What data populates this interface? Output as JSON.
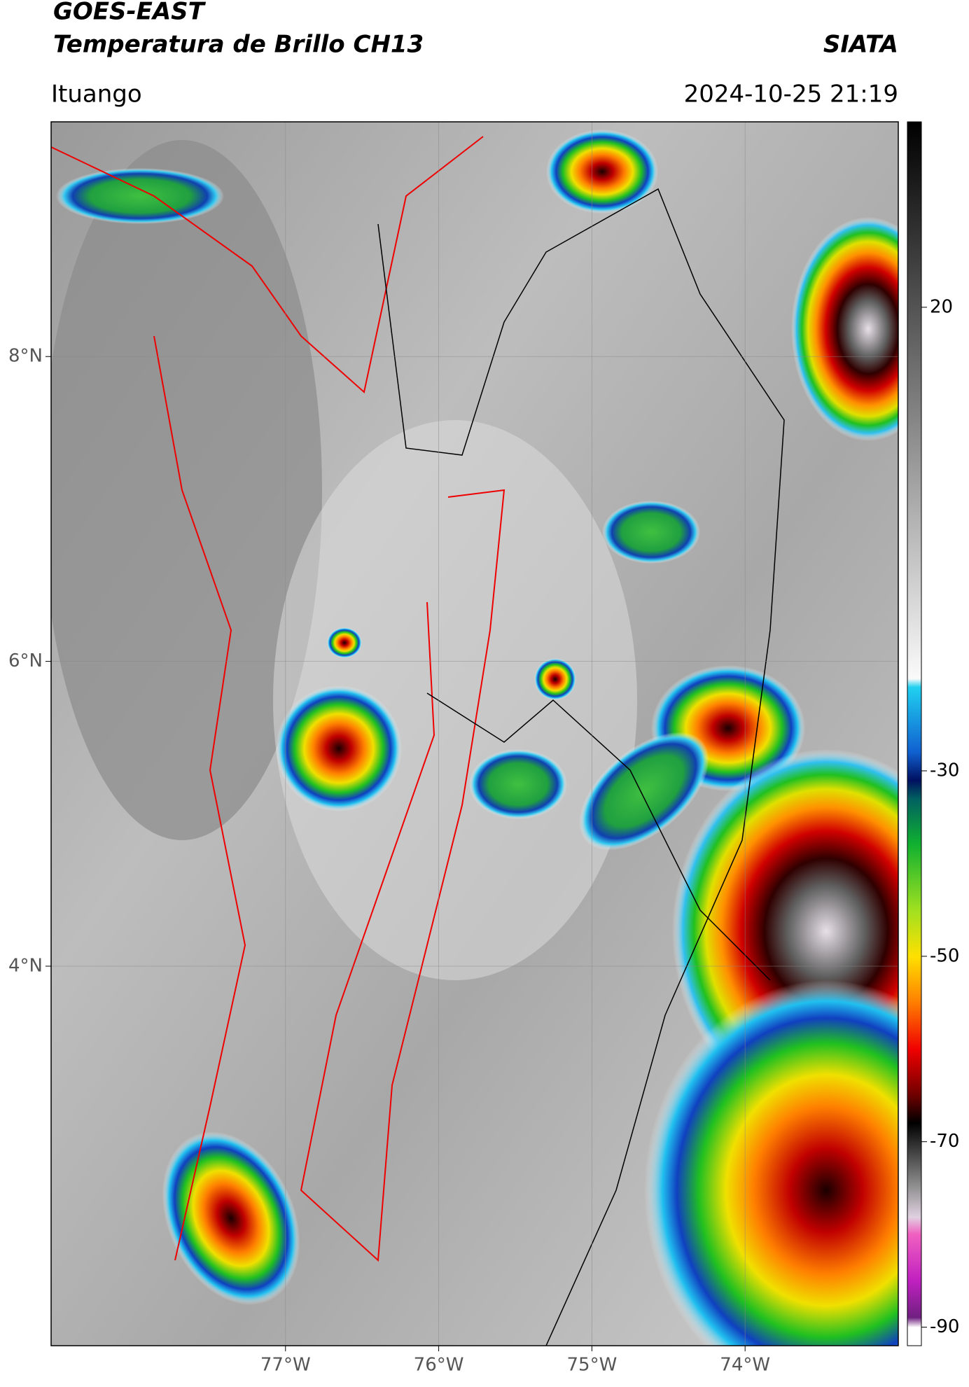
{
  "header": {
    "title": "GOES-EAST",
    "subtitle": "Temperatura de Brillo CH13",
    "source": "SIATA",
    "location": "Ituango",
    "datetime": "2024-10-25 21:19"
  },
  "map": {
    "xlim": [
      -78.53,
      -73.0
    ],
    "ylim": [
      1.51,
      9.54
    ],
    "xticks": [
      {
        "value": -77,
        "label": "77°W"
      },
      {
        "value": -76,
        "label": "76°W"
      },
      {
        "value": -75,
        "label": "75°W"
      },
      {
        "value": -74,
        "label": "74°W"
      }
    ],
    "yticks": [
      {
        "value": 8,
        "label": "8°N"
      },
      {
        "value": 6,
        "label": "6°N"
      },
      {
        "value": 4,
        "label": "4°N"
      }
    ],
    "grid": true
  },
  "colorbar": {
    "lim": [
      -92,
      40
    ],
    "ticks": [
      20,
      -30,
      -50,
      -70,
      -90
    ]
  }
}
